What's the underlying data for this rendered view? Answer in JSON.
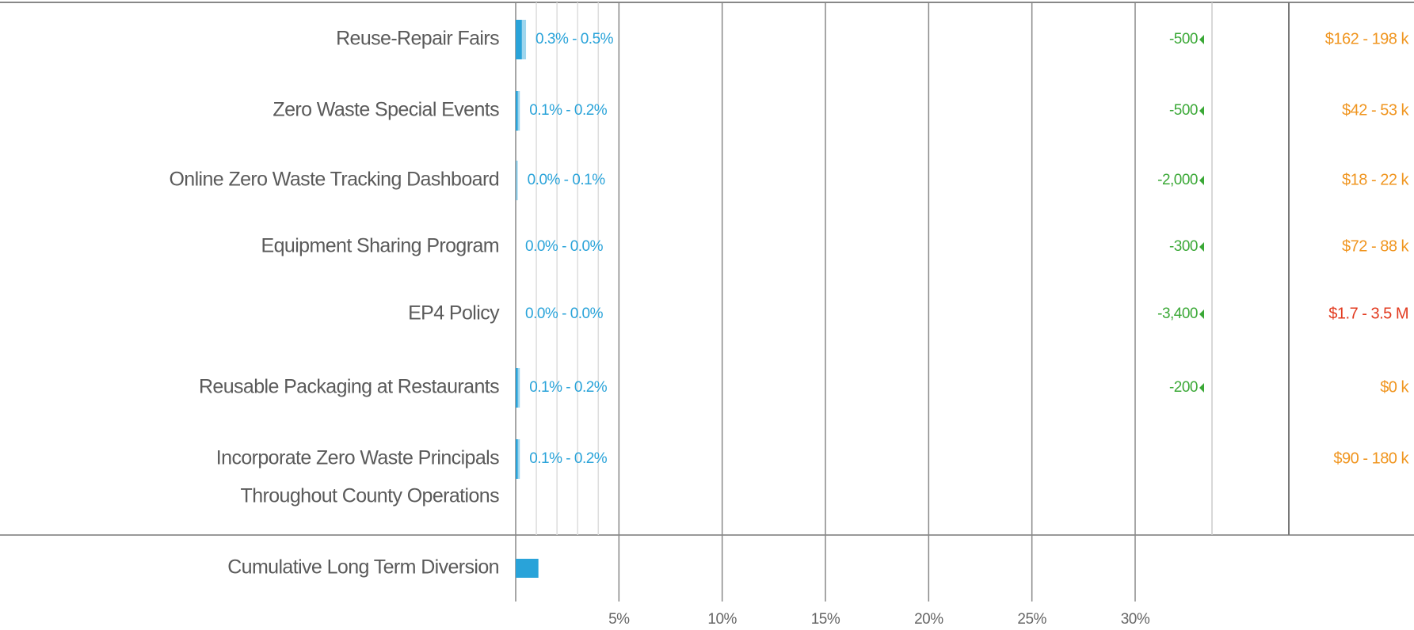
{
  "chart_data": {
    "type": "range-bar",
    "categories": [
      "Reuse-Repair Fairs",
      "Zero Waste Special Events",
      "Online Zero Waste Tracking Dashboard",
      "Equipment Sharing Program",
      "EP4 Policy",
      "Reusable Packaging at Restaurants",
      [
        "Incorporate Zero Waste Principals",
        "Throughout County Operations"
      ]
    ],
    "low": [
      0.3,
      0.1,
      0.0,
      0.0,
      0.0,
      0.1,
      0.1
    ],
    "high": [
      0.5,
      0.2,
      0.1,
      0.0,
      0.0,
      0.2,
      0.2
    ],
    "value_labels": [
      "0.3% - 0.5%",
      "0.1% - 0.2%",
      "0.0% - 0.1%",
      "0.0% - 0.0%",
      "0.0% - 0.0%",
      "0.1% - 0.2%",
      "0.1% - 0.2%"
    ],
    "color": "#29a3d9",
    "ghg_labels": [
      "-500",
      "-500",
      "-2,000",
      "-300",
      "-3,400",
      "-200",
      null
    ],
    "ghg_color": "#3aa836",
    "cost_labels": [
      "$162 - 198 k",
      "$42 - 53 k",
      "$18 - 22 k",
      "$72 - 88 k",
      "$1.7 - 3.5 M",
      "$0 k",
      "$90 - 180 k"
    ],
    "cost_colors": [
      "#f0951f",
      "#f0951f",
      "#f0951f",
      "#f0951f",
      "#e23a1f",
      "#f0951f",
      "#f0951f"
    ],
    "cumulative": {
      "label": "Cumulative Long Term Diversion",
      "value": 1.1
    },
    "xlim": [
      0,
      30
    ],
    "xticks": [
      {
        "value": 5,
        "label": "5%"
      },
      {
        "value": 10,
        "label": "10%"
      },
      {
        "value": 15,
        "label": "15%"
      },
      {
        "value": 20,
        "label": "20%"
      },
      {
        "value": 25,
        "label": "25%"
      },
      {
        "value": 30,
        "label": "30%"
      }
    ],
    "minor_ticks": [
      1,
      2,
      3,
      4
    ],
    "grid": true
  }
}
